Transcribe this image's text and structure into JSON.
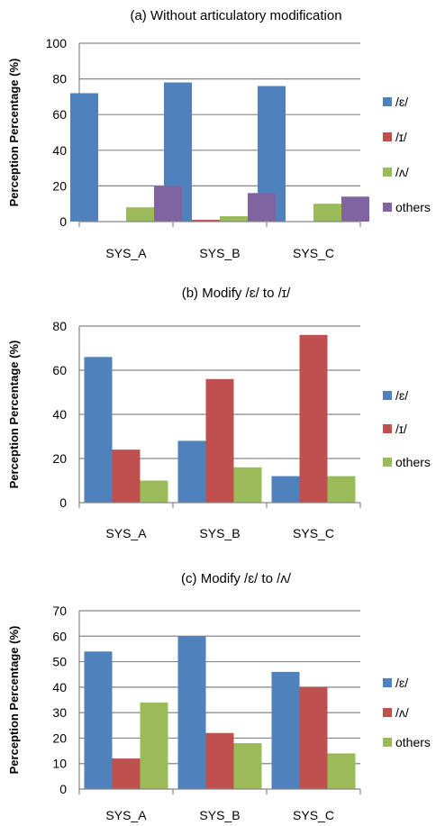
{
  "chart_data": [
    {
      "type": "bar",
      "title": "(a) Without articulatory modification",
      "ylabel": "Perception Percentage (%)",
      "xlabel": "",
      "categories": [
        "SYS_A",
        "SYS_B",
        "SYS_C"
      ],
      "ylim": [
        0,
        100
      ],
      "yticks": [
        0,
        20,
        40,
        60,
        80,
        100
      ],
      "grid": true,
      "legend_position": "right",
      "series": [
        {
          "name": "/ɛ/",
          "color": "#4f81bd",
          "values": [
            72,
            78,
            76
          ]
        },
        {
          "name": "/ɪ/",
          "color": "#c0504d",
          "values": [
            0,
            1,
            0
          ]
        },
        {
          "name": "/ʌ/",
          "color": "#9bbb59",
          "values": [
            8,
            3,
            10
          ]
        },
        {
          "name": "others",
          "color": "#8064a2",
          "values": [
            20,
            16,
            14
          ]
        }
      ]
    },
    {
      "type": "bar",
      "title": "(b) Modify /ɛ/ to /ɪ/",
      "ylabel": "Perception Percentage (%)",
      "xlabel": "",
      "categories": [
        "SYS_A",
        "SYS_B",
        "SYS_C"
      ],
      "ylim": [
        0,
        80
      ],
      "yticks": [
        0,
        20,
        40,
        60,
        80
      ],
      "grid": true,
      "legend_position": "right",
      "series": [
        {
          "name": "/ɛ/",
          "color": "#4f81bd",
          "values": [
            66,
            28,
            12
          ]
        },
        {
          "name": "/ɪ/",
          "color": "#c0504d",
          "values": [
            24,
            56,
            76
          ]
        },
        {
          "name": "others",
          "color": "#9bbb59",
          "values": [
            10,
            16,
            12
          ]
        }
      ]
    },
    {
      "type": "bar",
      "title": "(c) Modify /ɛ/ to /ʌ/",
      "ylabel": "Perception Percentage (%)",
      "xlabel": "",
      "categories": [
        "SYS_A",
        "SYS_B",
        "SYS_C"
      ],
      "ylim": [
        0,
        70
      ],
      "yticks": [
        0,
        10,
        20,
        30,
        40,
        50,
        60,
        70
      ],
      "grid": true,
      "legend_position": "right",
      "series": [
        {
          "name": "/ɛ/",
          "color": "#4f81bd",
          "values": [
            54,
            60,
            46
          ]
        },
        {
          "name": "/ʌ/",
          "color": "#c0504d",
          "values": [
            12,
            22,
            40
          ]
        },
        {
          "name": "others",
          "color": "#9bbb59",
          "values": [
            34,
            18,
            14
          ]
        }
      ]
    }
  ]
}
